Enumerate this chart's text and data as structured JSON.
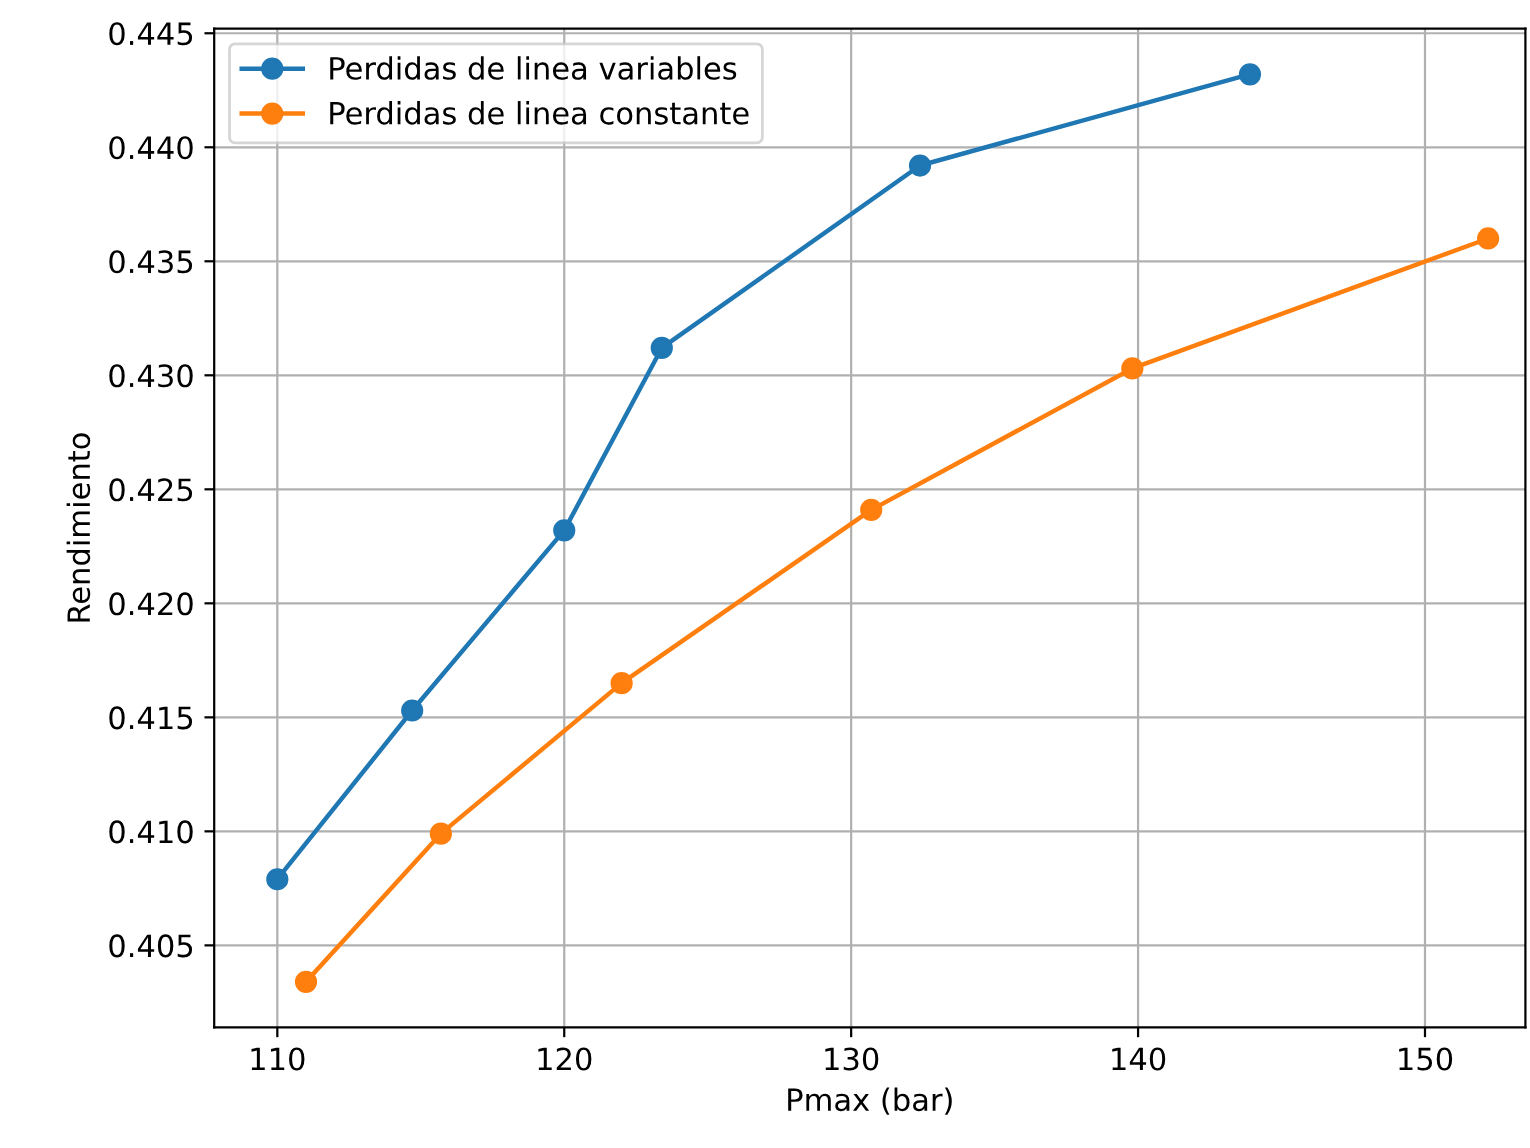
{
  "chart_data": {
    "type": "line",
    "xlabel": "Pmax (bar)",
    "ylabel": "Rendimiento",
    "series": [
      {
        "name": "Perdidas de linea variables",
        "color": "#1f77b4",
        "x": [
          110.0,
          114.7,
          120.0,
          123.4,
          132.4,
          143.9
        ],
        "values": [
          0.4079,
          0.4153,
          0.4232,
          0.4312,
          0.4392,
          0.4432
        ]
      },
      {
        "name": "Perdidas de linea constante",
        "color": "#ff7f0e",
        "x": [
          111.0,
          115.7,
          122.0,
          130.7,
          139.8,
          152.2
        ],
        "values": [
          0.4034,
          0.4099,
          0.4165,
          0.4241,
          0.4303,
          0.436
        ]
      }
    ],
    "xlim": [
      107.8,
      153.5
    ],
    "xticks": [
      110,
      120,
      130,
      140,
      150
    ],
    "ylim": [
      0.4014,
      0.4452
    ],
    "yticks": [
      {
        "value": 0.405,
        "label": "0.405"
      },
      {
        "value": 0.41,
        "label": "0.410"
      },
      {
        "value": 0.415,
        "label": "0.415"
      },
      {
        "value": 0.42,
        "label": "0.420"
      },
      {
        "value": 0.425,
        "label": "0.425"
      },
      {
        "value": 0.43,
        "label": "0.430"
      },
      {
        "value": 0.435,
        "label": "0.435"
      },
      {
        "value": 0.44,
        "label": "0.440"
      },
      {
        "value": 0.445,
        "label": "0.445"
      }
    ],
    "grid": true,
    "legend": "top left",
    "marker": "circle",
    "line_style": "solid"
  }
}
